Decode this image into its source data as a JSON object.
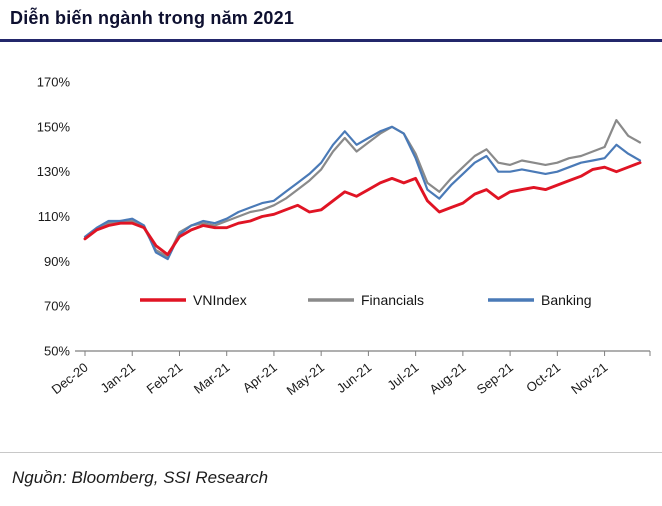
{
  "header": {
    "title": "Diễn biến ngành trong năm 2021"
  },
  "footer": {
    "source": "Nguồn: Bloomberg, SSI Research"
  },
  "colors": {
    "title_underline": "#23276b",
    "axis": "#7f7f7f",
    "tick_label": "#1a1a1a",
    "divider": "#c8c8c8"
  },
  "chart_data": {
    "type": "line",
    "title": "Diễn biến ngành trong năm 2021",
    "x_labels": [
      "Dec-20",
      "Jan-21",
      "Feb-21",
      "Mar-21",
      "Apr-21",
      "May-21",
      "Jun-21",
      "Jul-21",
      "Aug-21",
      "Sep-21",
      "Oct-21",
      "Nov-21"
    ],
    "points_per_month": 4,
    "y_ticks": [
      170,
      150,
      130,
      110,
      90,
      70,
      50
    ],
    "y_tick_suffix": "%",
    "ylim": [
      50,
      170
    ],
    "grid": false,
    "legend_position": "inside-bottom",
    "series": [
      {
        "name": "VNIndex",
        "color": "#e01424",
        "values": [
          100,
          104,
          106,
          107,
          107,
          105,
          97,
          93,
          101,
          104,
          106,
          105,
          105,
          107,
          108,
          110,
          111,
          113,
          115,
          112,
          113,
          117,
          121,
          119,
          122,
          125,
          127,
          125,
          127,
          117,
          112,
          114,
          116,
          120,
          122,
          118,
          121,
          122,
          123,
          122,
          124,
          126,
          128,
          131,
          132,
          130,
          132,
          134
        ]
      },
      {
        "name": "Financials",
        "color": "#8a8a8a",
        "values": [
          100,
          104,
          107,
          108,
          108,
          105,
          95,
          92,
          103,
          106,
          107,
          106,
          108,
          110,
          112,
          113,
          115,
          118,
          122,
          126,
          131,
          139,
          145,
          139,
          143,
          147,
          150,
          147,
          138,
          125,
          121,
          127,
          132,
          137,
          140,
          134,
          133,
          135,
          134,
          133,
          134,
          136,
          137,
          139,
          141,
          153,
          146,
          143
        ]
      },
      {
        "name": "Banking",
        "color": "#4a7ab7",
        "values": [
          101,
          105,
          108,
          108,
          109,
          106,
          94,
          91,
          102,
          106,
          108,
          107,
          109,
          112,
          114,
          116,
          117,
          121,
          125,
          129,
          134,
          142,
          148,
          142,
          145,
          148,
          150,
          147,
          136,
          122,
          118,
          124,
          129,
          134,
          137,
          130,
          130,
          131,
          130,
          129,
          130,
          132,
          134,
          135,
          136,
          142,
          138,
          135
        ]
      }
    ]
  }
}
